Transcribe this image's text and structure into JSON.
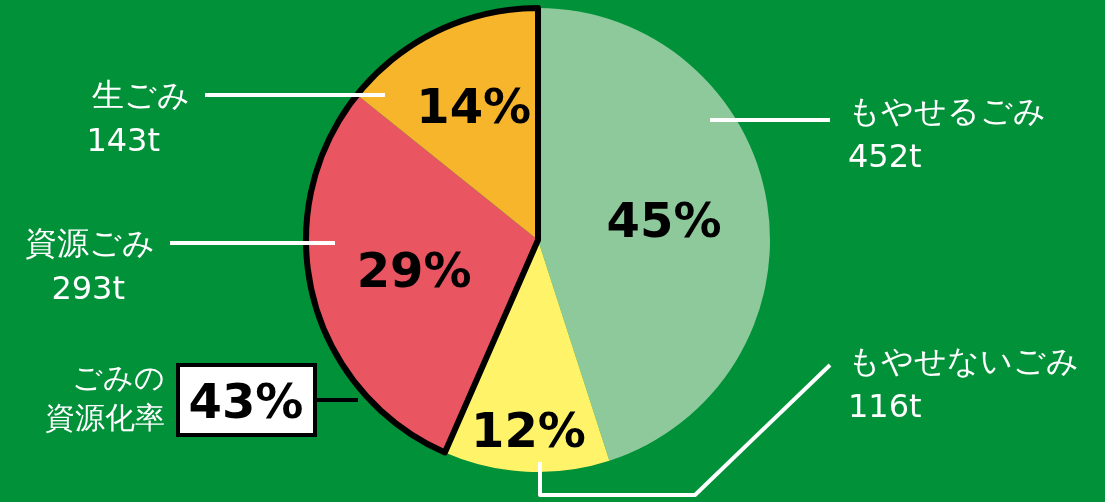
{
  "chart_data": {
    "type": "pie",
    "categories": [
      "もやせるごみ",
      "もやせないごみ",
      "資源ごみ",
      "生ごみ"
    ],
    "values": [
      452,
      116,
      293,
      143
    ],
    "value_labels": [
      "452t",
      "116t",
      "293t",
      "143t"
    ],
    "colors": [
      "#8dc99b",
      "#fff36a",
      "#e95560",
      "#f7b52c"
    ],
    "annotations": [
      {
        "text": "45%",
        "x": "もやせるごみ"
      },
      {
        "text": "12%",
        "x": "もやせないごみ"
      },
      {
        "text": "29%",
        "x": "資源ごみ"
      },
      {
        "text": "14%",
        "x": "生ごみ"
      },
      "ごみの",
      "資源化率",
      "43%"
    ]
  }
}
